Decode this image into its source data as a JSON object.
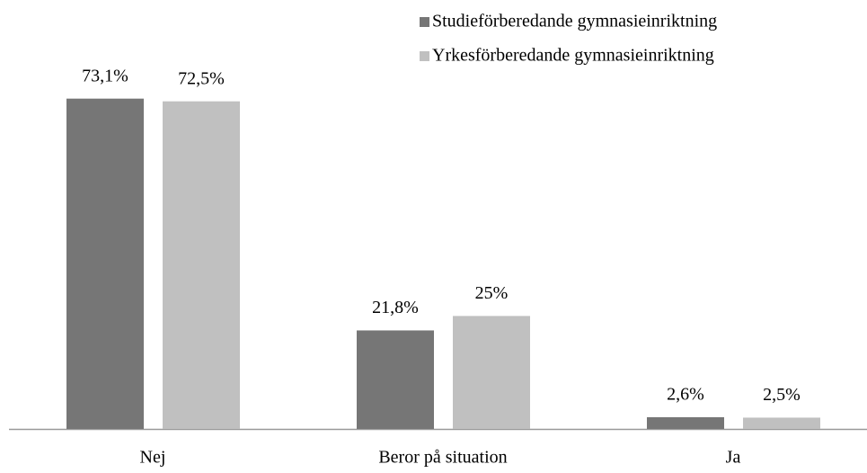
{
  "chart_data": {
    "type": "bar",
    "categories": [
      "Nej",
      "Beror på situation",
      "Ja"
    ],
    "series": [
      {
        "name": "Studieförberedande gymnasieinriktning",
        "color": "#767676",
        "values": [
          73.1,
          21.8,
          2.6
        ],
        "value_labels": [
          "73,1%",
          "21,8%",
          "2,6%"
        ]
      },
      {
        "name": "Yrkesförberedande gymnasieinriktning",
        "color": "#c0c0c0",
        "values": [
          72.5,
          25,
          2.5
        ],
        "value_labels": [
          "72,5%",
          "25%",
          "2,5%"
        ]
      }
    ],
    "ylim": [
      0,
      80
    ],
    "legend": "top-right"
  }
}
